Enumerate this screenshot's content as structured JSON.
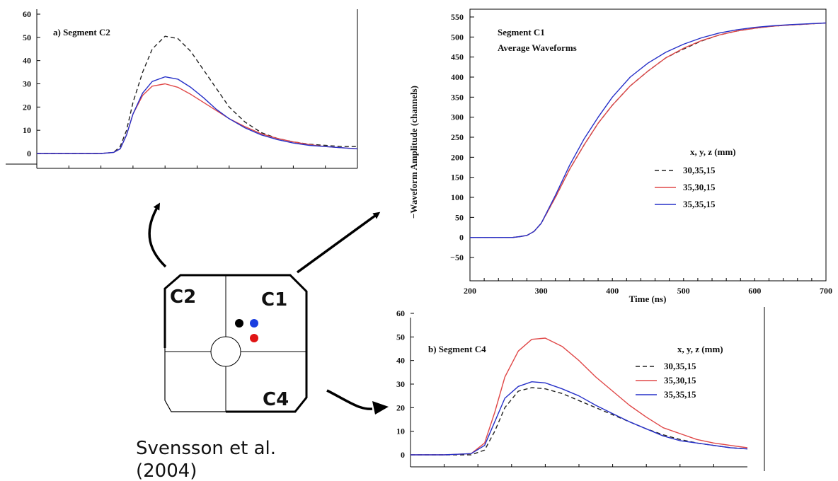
{
  "colors": {
    "black_dash": "#222222",
    "red": "#e04848",
    "blue": "#2630c8",
    "dot_black": "#000000",
    "dot_blue": "#1a3ee0",
    "dot_red": "#e01414"
  },
  "diagram": {
    "segments": [
      "C2",
      "C1",
      "C4"
    ],
    "citation_line1": "Svensson et al.",
    "citation_line2": "(2004)"
  },
  "chart_data": [
    {
      "type": "line",
      "panel": "a",
      "title": "a) Segment C2",
      "xlabel": "",
      "ylabel": "",
      "xlim": [
        0,
        100
      ],
      "ylim": [
        0,
        60
      ],
      "yticks": [
        0,
        10,
        20,
        30,
        40,
        50,
        60
      ],
      "grid": false,
      "series": [
        {
          "color_key": "black_dash",
          "dashed": true,
          "x": [
            0,
            10,
            20,
            24,
            26,
            28,
            30,
            33,
            36,
            40,
            44,
            48,
            52,
            56,
            60,
            65,
            70,
            75,
            80,
            85,
            90,
            95,
            100
          ],
          "y": [
            0,
            0,
            0,
            0.5,
            3,
            10,
            22,
            35,
            45,
            50.5,
            49.5,
            44,
            36,
            28,
            20,
            13.5,
            9,
            6.5,
            5,
            4,
            3.5,
            3,
            3
          ]
        },
        {
          "color_key": "red",
          "dashed": false,
          "x": [
            0,
            10,
            20,
            24,
            26,
            28,
            30,
            33,
            36,
            40,
            44,
            48,
            52,
            56,
            60,
            65,
            70,
            75,
            80,
            85,
            90,
            95,
            100
          ],
          "y": [
            0,
            0,
            0,
            0.5,
            2,
            8,
            17,
            25,
            29,
            30,
            28.5,
            25.5,
            22,
            18.5,
            15,
            11.5,
            8.5,
            6.5,
            5,
            3.8,
            3,
            2.5,
            2
          ]
        },
        {
          "color_key": "blue",
          "dashed": false,
          "x": [
            0,
            10,
            20,
            24,
            26,
            28,
            30,
            33,
            36,
            40,
            44,
            48,
            52,
            56,
            60,
            65,
            70,
            75,
            80,
            85,
            90,
            95,
            100
          ],
          "y": [
            0,
            0,
            0,
            0.5,
            2,
            8,
            17,
            26,
            31,
            33,
            32,
            28.5,
            24,
            19,
            15,
            11,
            8,
            6,
            4.5,
            3.5,
            3,
            2.5,
            2
          ]
        }
      ]
    },
    {
      "type": "line",
      "panel": "main",
      "title": "Segment C1",
      "subtitle": "Average Waveforms",
      "xlabel": "Time (ns)",
      "ylabel": "−Waveform Amplitude (channels)",
      "xlim": [
        200,
        700
      ],
      "ylim": [
        -50,
        550
      ],
      "xticks": [
        200,
        300,
        400,
        500,
        600,
        700
      ],
      "yticks": [
        -50,
        0,
        50,
        100,
        150,
        200,
        250,
        300,
        350,
        400,
        450,
        500,
        550
      ],
      "grid": false,
      "legend_title": "x, y, z (mm)",
      "legend_position": "right",
      "series": [
        {
          "name": "30,35,15",
          "color_key": "black_dash",
          "dashed": true,
          "x": [
            200,
            260,
            270,
            280,
            290,
            300,
            320,
            340,
            360,
            380,
            400,
            425,
            450,
            475,
            500,
            525,
            550,
            575,
            600,
            625,
            650,
            700
          ],
          "y": [
            0,
            0,
            2,
            5,
            15,
            35,
            100,
            170,
            230,
            285,
            330,
            378,
            415,
            448,
            470,
            490,
            505,
            515,
            522,
            527,
            530,
            535
          ]
        },
        {
          "name": "35,30,15",
          "color_key": "red",
          "dashed": false,
          "x": [
            200,
            260,
            270,
            280,
            290,
            300,
            320,
            340,
            360,
            380,
            400,
            425,
            450,
            475,
            500,
            525,
            550,
            575,
            600,
            625,
            650,
            700
          ],
          "y": [
            0,
            0,
            2,
            5,
            15,
            35,
            100,
            170,
            230,
            285,
            330,
            378,
            415,
            448,
            472,
            491,
            505,
            515,
            522,
            527,
            530,
            535
          ]
        },
        {
          "name": "35,35,15",
          "color_key": "blue",
          "dashed": false,
          "x": [
            200,
            260,
            270,
            280,
            290,
            300,
            320,
            340,
            360,
            380,
            400,
            425,
            450,
            475,
            500,
            525,
            550,
            575,
            600,
            625,
            650,
            700
          ],
          "y": [
            0,
            0,
            2,
            5,
            15,
            35,
            105,
            180,
            245,
            300,
            350,
            400,
            435,
            462,
            482,
            498,
            510,
            518,
            524,
            528,
            531,
            535
          ]
        }
      ]
    },
    {
      "type": "line",
      "panel": "b",
      "title": "b) Segment C4",
      "xlabel": "",
      "ylabel": "",
      "xlim": [
        0,
        100
      ],
      "ylim": [
        0,
        60
      ],
      "yticks": [
        0,
        10,
        20,
        30,
        40,
        50,
        60
      ],
      "grid": false,
      "legend_title": "x, y, z (mm)",
      "legend_position": "top-right",
      "series": [
        {
          "name": "30,35,15",
          "color_key": "black_dash",
          "dashed": true,
          "x": [
            0,
            10,
            18,
            22,
            25,
            28,
            32,
            36,
            40,
            45,
            50,
            55,
            60,
            65,
            70,
            75,
            80,
            85,
            90,
            95,
            100
          ],
          "y": [
            0,
            0,
            0,
            2,
            10,
            20,
            27,
            28.5,
            28,
            26,
            23,
            20,
            17,
            14,
            11,
            8.5,
            6.5,
            5,
            4,
            3,
            2.5
          ]
        },
        {
          "name": "35,30,15",
          "color_key": "red",
          "dashed": false,
          "x": [
            0,
            10,
            18,
            22,
            25,
            28,
            32,
            36,
            40,
            45,
            50,
            55,
            60,
            65,
            70,
            75,
            80,
            85,
            90,
            95,
            100
          ],
          "y": [
            0,
            0,
            0.5,
            5,
            18,
            33,
            44,
            49,
            49.5,
            46,
            40,
            33,
            27,
            21,
            16,
            11.5,
            9,
            6.5,
            5,
            4,
            3
          ]
        },
        {
          "name": "35,35,15",
          "color_key": "blue",
          "dashed": false,
          "x": [
            0,
            10,
            18,
            22,
            25,
            28,
            32,
            36,
            40,
            45,
            50,
            55,
            60,
            65,
            70,
            75,
            80,
            85,
            90,
            95,
            100
          ],
          "y": [
            0,
            0,
            0.5,
            4,
            14,
            24,
            29,
            31,
            30.5,
            28,
            25,
            21,
            17.5,
            14,
            11,
            8,
            6,
            5,
            4,
            3,
            2.5
          ]
        }
      ]
    }
  ]
}
